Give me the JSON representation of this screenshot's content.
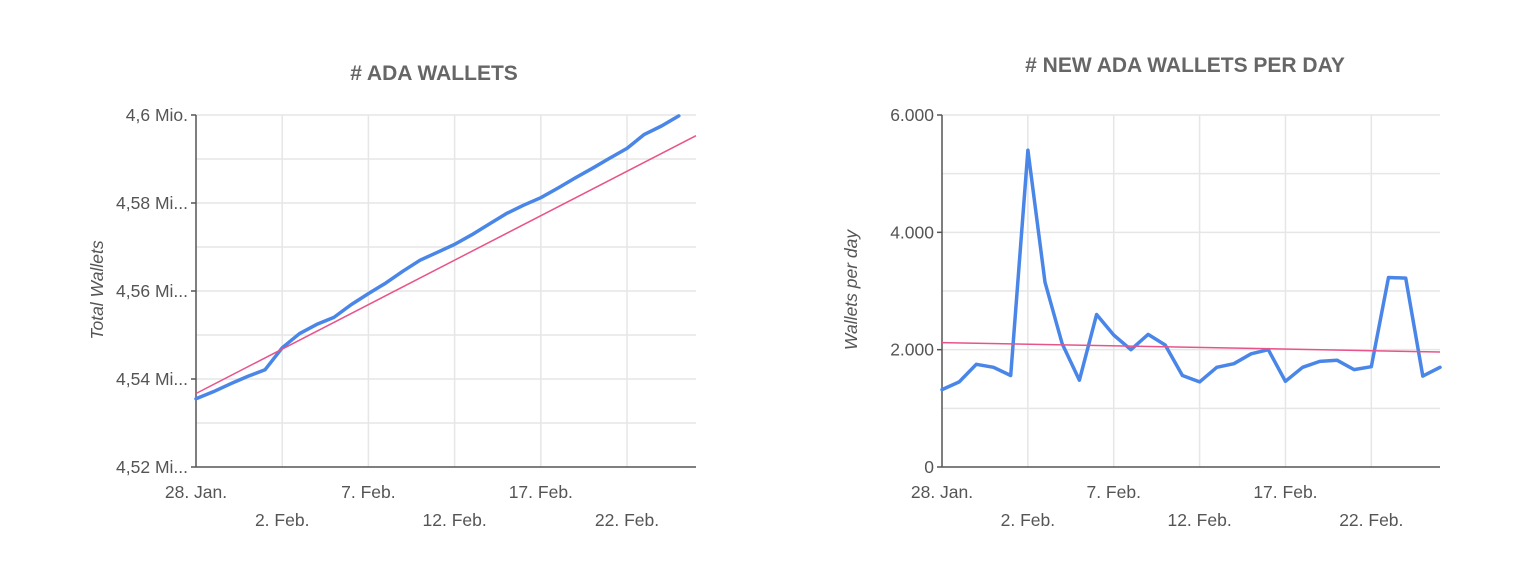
{
  "colors": {
    "series": "#4a86e8",
    "trend": "#e8548a"
  },
  "chart_data": [
    {
      "type": "line",
      "title": "# ADA WALLETS",
      "ylabel": "Total Wallets",
      "xlabel": "",
      "x_start": "28. Jan.",
      "x_end": "26. Feb.",
      "x_ticks": [
        {
          "day": 0,
          "label": "28. Jan."
        },
        {
          "day": 5,
          "label": "2. Feb."
        },
        {
          "day": 10,
          "label": "7. Feb."
        },
        {
          "day": 15,
          "label": "12. Feb."
        },
        {
          "day": 20,
          "label": "17. Feb."
        },
        {
          "day": 25,
          "label": "22. Feb."
        }
      ],
      "y_ticks": [
        {
          "value": 4.52,
          "label": "4,52 Mi..."
        },
        {
          "value": 4.54,
          "label": "4,54 Mi..."
        },
        {
          "value": 4.56,
          "label": "4,56 Mi..."
        },
        {
          "value": 4.58,
          "label": "4,58 Mi..."
        },
        {
          "value": 4.6,
          "label": "4,6 Mio."
        }
      ],
      "ylim": [
        4.52,
        4.6
      ],
      "y_unit": "Mio.",
      "grid": true,
      "series": [
        {
          "name": "",
          "role": "data",
          "values": [
            4.5355,
            4.5371,
            4.5389,
            4.5406,
            4.5421,
            4.5471,
            4.5503,
            4.5524,
            4.554,
            4.5569,
            4.5594,
            4.5618,
            4.5645,
            4.567,
            4.5688,
            4.5706,
            4.5728,
            4.5752,
            4.5776,
            4.5795,
            4.5812,
            4.5834,
            4.5857,
            4.5879,
            4.5902,
            4.5924,
            4.5956,
            4.5975,
            4.5998
          ]
        },
        {
          "name": "",
          "role": "trend",
          "values": [
            4.5367,
            4.5953
          ]
        }
      ]
    },
    {
      "type": "line",
      "title": "# NEW ADA WALLETS PER DAY",
      "ylabel": "Wallets per day",
      "xlabel": "",
      "x_start": "28. Jan.",
      "x_end": "26. Feb.",
      "x_ticks": [
        {
          "day": 0,
          "label": "28. Jan."
        },
        {
          "day": 5,
          "label": "2. Feb."
        },
        {
          "day": 10,
          "label": "7. Feb."
        },
        {
          "day": 15,
          "label": "12. Feb."
        },
        {
          "day": 20,
          "label": "17. Feb."
        },
        {
          "day": 25,
          "label": "22. Feb."
        }
      ],
      "y_ticks": [
        {
          "value": 0,
          "label": "0"
        },
        {
          "value": 2000,
          "label": "2.000"
        },
        {
          "value": 4000,
          "label": "4.000"
        },
        {
          "value": 6000,
          "label": "6.000"
        }
      ],
      "ylim": [
        0,
        6000
      ],
      "grid": true,
      "series": [
        {
          "name": "",
          "role": "data",
          "values": [
            1320,
            1450,
            1750,
            1700,
            1560,
            5400,
            3150,
            2100,
            1480,
            2600,
            2250,
            2000,
            2260,
            2080,
            1560,
            1450,
            1700,
            1760,
            1930,
            2000,
            1460,
            1700,
            1800,
            1820,
            1660,
            1710,
            3230,
            3220,
            1550,
            1700
          ]
        },
        {
          "name": "",
          "role": "trend",
          "values": [
            2120,
            1960
          ]
        }
      ]
    }
  ]
}
